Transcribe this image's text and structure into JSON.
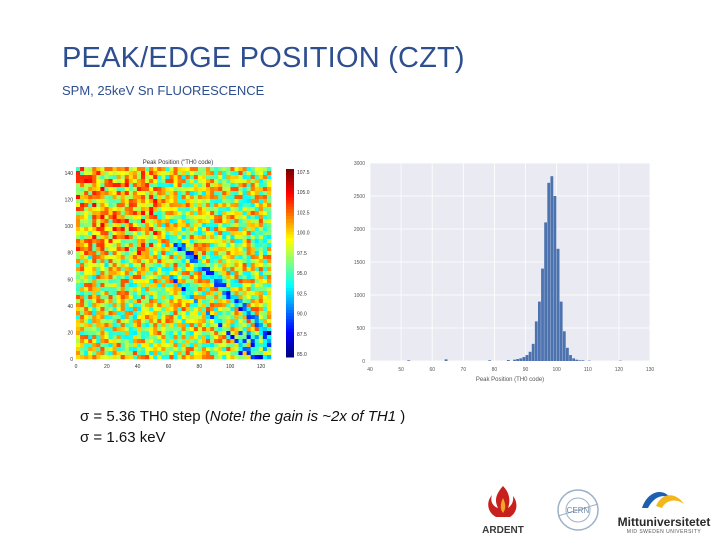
{
  "slide": {
    "title": "PEAK/EDGE POSITION (CZT)",
    "subtitle": "SPM, 25keV Sn FLUORESCENCE"
  },
  "heatmap": {
    "title": "Peak Position (\"TH0 code)",
    "x_ticks": [
      "0",
      "20",
      "40",
      "60",
      "80",
      "100",
      "120"
    ],
    "y_ticks": [
      "140",
      "120",
      "100",
      "80",
      "60",
      "40",
      "20",
      "0"
    ],
    "colorbar_ticks": [
      "107.5",
      "105.0",
      "102.5",
      "100.0",
      "97.5",
      "95.0",
      "92.5",
      "90.0",
      "87.5",
      "85.0"
    ]
  },
  "chart_data": {
    "type": "bar",
    "xlabel": "Peak Position (TH0 code)",
    "xlim": [
      40,
      130
    ],
    "ylim": [
      0,
      3000
    ],
    "x_ticks": [
      "40",
      "50",
      "60",
      "70",
      "80",
      "90",
      "100",
      "110",
      "120",
      "130"
    ],
    "y_ticks": [
      "0",
      "500",
      "1000",
      "1500",
      "2000",
      "2500",
      "3000"
    ],
    "bar_color": "#4c72b0",
    "bin_width": 1,
    "x": [
      52,
      64,
      78,
      84,
      86,
      87,
      88,
      89,
      90,
      91,
      92,
      93,
      94,
      95,
      96,
      97,
      98,
      99,
      100,
      101,
      102,
      103,
      104,
      105,
      106,
      107,
      108,
      110,
      120
    ],
    "values": [
      10,
      25,
      10,
      15,
      20,
      30,
      40,
      60,
      90,
      140,
      260,
      600,
      900,
      1400,
      2100,
      2700,
      2800,
      2500,
      1700,
      900,
      450,
      200,
      90,
      40,
      20,
      10,
      10,
      5,
      5
    ]
  },
  "notes": {
    "line1_prefix": "σ = 5.36 TH0 step (",
    "line1_italic": "Note! the gain is ~2x of TH1 ",
    "line1_suffix": ")",
    "line2": "σ = 1.63 keV"
  },
  "logos": {
    "ardent": "ARDENT",
    "cern": "CERN",
    "miun_name": "Mittuniversitetet",
    "miun_sub": "MID SWEDEN UNIVERSITY"
  },
  "colors": {
    "title": "#2e4f8f",
    "hist_bar": "#4c72b0",
    "hist_bg": "#eaeaf2"
  }
}
